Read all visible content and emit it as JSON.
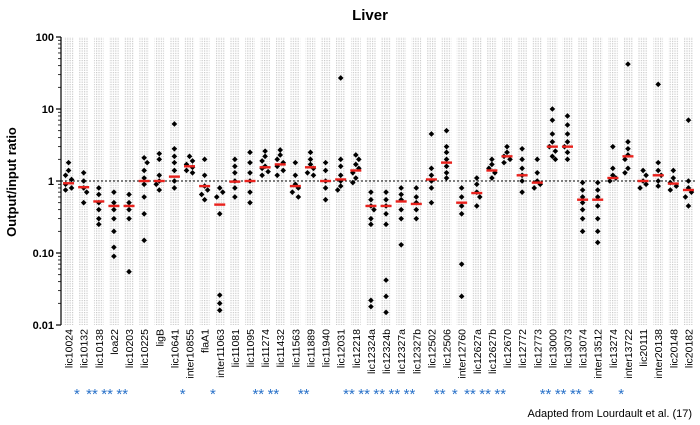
{
  "chart_data": {
    "type": "scatter",
    "title": "Liver",
    "ylabel": "Output/input ratio",
    "yscale": "log",
    "ylim": [
      0.01,
      100
    ],
    "yticks": [
      {
        "value": 100,
        "label": "100"
      },
      {
        "value": 10,
        "label": "10"
      },
      {
        "value": 1,
        "label": "1"
      },
      {
        "value": 0.1,
        "label": "0.10"
      },
      {
        "value": 0.01,
        "label": "0.01"
      }
    ],
    "reference_line": 1,
    "credit": "Adapted from Lourdault et al. (17)",
    "colors": {
      "points": "#000000",
      "median": "#e8211c",
      "significance": "#2a72c9",
      "band": "#cfcfcf"
    },
    "categories": [
      {
        "name": "lic10024",
        "stars": "",
        "median": 0.93,
        "points": [
          1.8,
          1.4,
          1.2,
          1.05,
          0.9,
          0.8,
          0.75
        ]
      },
      {
        "name": "lic10132",
        "stars": "*",
        "median": 0.82,
        "points": [
          1.3,
          1.0,
          0.8,
          0.7,
          0.5
        ]
      },
      {
        "name": "lic10138",
        "stars": "**",
        "median": 0.52,
        "points": [
          0.8,
          0.65,
          0.5,
          0.4,
          0.3,
          0.25
        ]
      },
      {
        "name": "loa22",
        "stars": "**",
        "median": 0.45,
        "points": [
          0.7,
          0.5,
          0.4,
          0.3,
          0.2,
          0.12,
          0.09
        ]
      },
      {
        "name": "lic10203",
        "stars": "**",
        "median": 0.45,
        "points": [
          0.65,
          0.5,
          0.4,
          0.3,
          0.055
        ]
      },
      {
        "name": "lic10225",
        "stars": "",
        "median": 1.0,
        "points": [
          2.1,
          1.8,
          1.4,
          1.1,
          0.9,
          0.6,
          0.35,
          0.15
        ]
      },
      {
        "name": "ligB",
        "stars": "",
        "median": 1.0,
        "points": [
          2.4,
          2.0,
          1.2,
          1.0,
          0.9,
          0.75
        ]
      },
      {
        "name": "lic10641",
        "stars": "",
        "median": 1.15,
        "points": [
          6.2,
          2.8,
          2.2,
          1.8,
          1.4,
          1.0,
          0.8
        ]
      },
      {
        "name": "inter10855",
        "stars": "*",
        "median": 1.6,
        "points": [
          2.2,
          1.9,
          1.7,
          1.55,
          1.4,
          1.3
        ]
      },
      {
        "name": "flaA1",
        "stars": "",
        "median": 0.85,
        "points": [
          2.0,
          1.2,
          0.85,
          0.75,
          0.65,
          0.55
        ]
      },
      {
        "name": "inter11063",
        "stars": "*",
        "median": 0.47,
        "points": [
          0.8,
          0.7,
          0.6,
          0.35,
          0.026,
          0.02,
          0.016
        ]
      },
      {
        "name": "lic11081",
        "stars": "",
        "median": 0.98,
        "points": [
          2.0,
          1.6,
          1.3,
          1.0,
          0.8,
          0.6
        ]
      },
      {
        "name": "lic11095",
        "stars": "",
        "median": 1.0,
        "points": [
          2.5,
          1.8,
          1.3,
          1.0,
          0.7,
          0.5
        ]
      },
      {
        "name": "lic11274",
        "stars": "**",
        "median": 1.55,
        "points": [
          2.6,
          2.2,
          1.9,
          1.6,
          1.5,
          1.35,
          1.2
        ]
      },
      {
        "name": "lic11432",
        "stars": "**",
        "median": 1.7,
        "points": [
          2.7,
          2.3,
          2.0,
          1.8,
          1.6,
          1.4,
          1.2
        ]
      },
      {
        "name": "lic11563",
        "stars": "",
        "median": 0.85,
        "points": [
          1.8,
          1.2,
          0.9,
          0.8,
          0.7,
          0.6
        ]
      },
      {
        "name": "lic11889",
        "stars": "**",
        "median": 1.55,
        "points": [
          2.5,
          2.0,
          1.7,
          1.5,
          1.3,
          1.2
        ]
      },
      {
        "name": "lic11940",
        "stars": "",
        "median": 1.0,
        "points": [
          1.8,
          1.4,
          1.0,
          0.8,
          0.55
        ]
      },
      {
        "name": "lic12031",
        "stars": "",
        "median": 1.05,
        "points": [
          27,
          2.0,
          1.6,
          1.2,
          1.0,
          0.85,
          0.75
        ]
      },
      {
        "name": "lic12218",
        "stars": "**",
        "median": 1.4,
        "points": [
          2.3,
          2.0,
          1.7,
          1.5,
          1.3,
          1.1,
          0.95
        ]
      },
      {
        "name": "lic12324a",
        "stars": "**",
        "median": 0.45,
        "points": [
          0.7,
          0.55,
          0.45,
          0.4,
          0.3,
          0.25,
          0.022,
          0.018
        ]
      },
      {
        "name": "lic12324b",
        "stars": "**",
        "median": 0.45,
        "points": [
          0.7,
          0.55,
          0.45,
          0.35,
          0.25,
          0.042,
          0.025,
          0.015
        ]
      },
      {
        "name": "lic12327a",
        "stars": "**",
        "median": 0.52,
        "points": [
          0.8,
          0.65,
          0.55,
          0.4,
          0.3,
          0.13
        ]
      },
      {
        "name": "lic12327b",
        "stars": "**",
        "median": 0.48,
        "points": [
          0.8,
          0.6,
          0.5,
          0.4,
          0.3
        ]
      },
      {
        "name": "lic12502",
        "stars": "",
        "median": 1.05,
        "points": [
          4.5,
          1.5,
          1.2,
          1.0,
          0.8,
          0.5
        ]
      },
      {
        "name": "lic12506",
        "stars": "**",
        "median": 1.8,
        "points": [
          5.0,
          3.0,
          2.5,
          2.0,
          1.6,
          1.3,
          1.1
        ]
      },
      {
        "name": "inter12760",
        "stars": "*",
        "median": 0.5,
        "points": [
          0.8,
          0.6,
          0.45,
          0.35,
          0.07,
          0.025
        ]
      },
      {
        "name": "lic12627a",
        "stars": "**",
        "median": 0.68,
        "points": [
          1.1,
          0.9,
          0.7,
          0.6,
          0.45
        ]
      },
      {
        "name": "lic12627b",
        "stars": "**",
        "median": 1.4,
        "points": [
          2.0,
          1.7,
          1.5,
          1.3,
          1.1
        ]
      },
      {
        "name": "lic12670",
        "stars": "**",
        "median": 2.2,
        "points": [
          3.0,
          2.5,
          2.2,
          2.0,
          1.8
        ]
      },
      {
        "name": "lic12772",
        "stars": "",
        "median": 1.2,
        "points": [
          2.8,
          2.0,
          1.5,
          1.2,
          1.0,
          0.7
        ]
      },
      {
        "name": "lic12773",
        "stars": "",
        "median": 0.95,
        "points": [
          2.0,
          1.3,
          1.0,
          0.9,
          0.8
        ]
      },
      {
        "name": "lic13000",
        "stars": "**",
        "median": 3.0,
        "points": [
          10,
          7.0,
          4.5,
          3.5,
          3.0,
          2.6,
          2.2,
          2.0
        ]
      },
      {
        "name": "lic13073",
        "stars": "**",
        "median": 3.0,
        "points": [
          8.0,
          6.0,
          4.5,
          3.5,
          3.0,
          2.5,
          2.0
        ]
      },
      {
        "name": "lic13074",
        "stars": "**",
        "median": 0.55,
        "points": [
          0.95,
          0.75,
          0.6,
          0.5,
          0.4,
          0.3,
          0.2
        ]
      },
      {
        "name": "inter13512",
        "stars": "*",
        "median": 0.55,
        "points": [
          0.95,
          0.75,
          0.6,
          0.45,
          0.3,
          0.2,
          0.14
        ]
      },
      {
        "name": "lic13274",
        "stars": "",
        "median": 1.1,
        "points": [
          3.0,
          1.5,
          1.2,
          1.1,
          1.0
        ]
      },
      {
        "name": "inter13722",
        "stars": "*",
        "median": 2.2,
        "points": [
          42,
          3.5,
          2.8,
          2.3,
          2.0,
          1.5,
          1.3
        ]
      },
      {
        "name": "lic20111",
        "stars": "",
        "median": 1.0,
        "points": [
          1.4,
          1.2,
          1.0,
          0.9,
          0.8
        ]
      },
      {
        "name": "inter20138",
        "stars": "",
        "median": 1.2,
        "points": [
          22,
          1.8,
          1.4,
          1.2,
          1.0,
          0.85
        ]
      },
      {
        "name": "lic20148",
        "stars": "",
        "median": 0.92,
        "points": [
          1.4,
          1.1,
          0.95,
          0.85,
          0.75
        ]
      },
      {
        "name": "lic20182",
        "stars": "",
        "median": 0.75,
        "points": [
          7.0,
          1.0,
          0.8,
          0.7,
          0.6,
          0.45
        ]
      }
    ]
  }
}
